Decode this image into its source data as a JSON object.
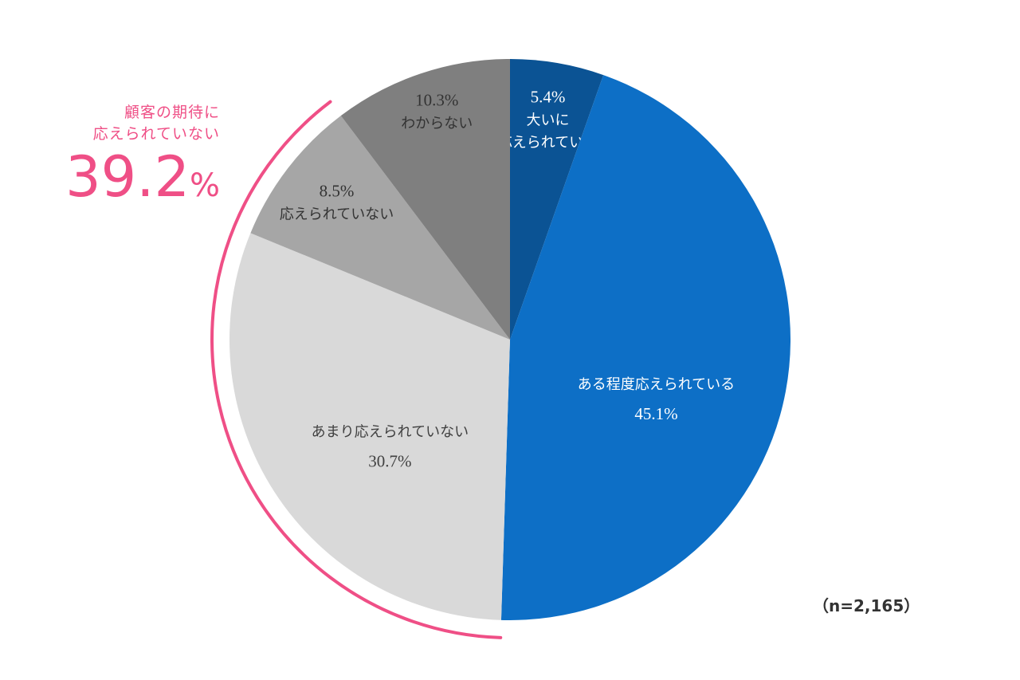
{
  "chart_data": {
    "type": "pie",
    "start": "12 o'clock",
    "direction": "clockwise",
    "slices": [
      {
        "name": "大いに応えられている",
        "label_lines": [
          "大いに",
          "応えられている"
        ],
        "value": 5.4,
        "value_label": "5.4%",
        "color": "#0b5394",
        "text_color": "#ffffff"
      },
      {
        "name": "ある程度応えられている",
        "label_lines": [
          "ある程度応えられている"
        ],
        "value": 45.1,
        "value_label": "45.1%",
        "color": "#0d6fc6",
        "text_color": "#ffffff"
      },
      {
        "name": "あまり応えられていない",
        "label_lines": [
          "あまり応えられていない"
        ],
        "value": 30.7,
        "value_label": "30.7%",
        "color": "#d9d9d9",
        "text_color": "#404040"
      },
      {
        "name": "応えられていない",
        "label_lines": [
          "応えられていない"
        ],
        "value": 8.5,
        "value_label": "8.5%",
        "color": "#a6a6a6",
        "text_color": "#333333"
      },
      {
        "name": "わからない",
        "label_lines": [
          "わからない"
        ],
        "value": 10.3,
        "value_label": "10.3%",
        "color": "#7f7f7f",
        "text_color": "#333333"
      }
    ],
    "sample_size": "（n=2,165）"
  },
  "callout": {
    "line1": "顧客の期待に",
    "line2": "応えられていない",
    "value": "39.2",
    "unit": "%",
    "color": "#ef4f86"
  }
}
